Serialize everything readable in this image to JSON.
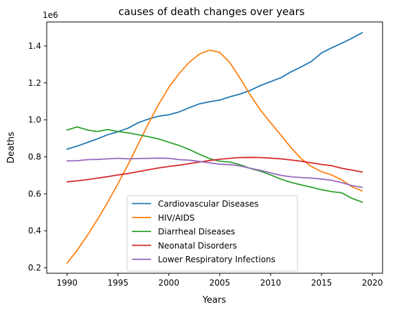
{
  "chart_data": {
    "type": "line",
    "title": "causes of death changes over years",
    "xlabel": "Years",
    "ylabel": "Deaths",
    "y_offset_label": "1e6",
    "xlim": [
      1988,
      2021
    ],
    "ylim": [
      0.17,
      1.53
    ],
    "xticks": [
      1990,
      1995,
      2000,
      2005,
      2010,
      2015,
      2020
    ],
    "yticks": [
      0.2,
      0.4,
      0.6,
      0.8,
      1.0,
      1.2,
      1.4
    ],
    "ytick_labels": [
      "0.2",
      "0.4",
      "0.6",
      "0.8",
      "1.0",
      "1.2",
      "1.4"
    ],
    "grid": false,
    "legend_position": "lower-center",
    "x": [
      1990,
      1991,
      1992,
      1993,
      1994,
      1995,
      1996,
      1997,
      1998,
      1999,
      2000,
      2001,
      2002,
      2003,
      2004,
      2005,
      2006,
      2007,
      2008,
      2009,
      2010,
      2011,
      2012,
      2013,
      2014,
      2015,
      2016,
      2017,
      2018,
      2019
    ],
    "series": [
      {
        "name": "Cardiovascular Diseases",
        "color": "#1f77b4",
        "values": [
          0.842,
          0.858,
          0.878,
          0.898,
          0.92,
          0.936,
          0.955,
          0.985,
          1.005,
          1.02,
          1.028,
          1.043,
          1.066,
          1.087,
          1.098,
          1.107,
          1.125,
          1.14,
          1.16,
          1.186,
          1.207,
          1.228,
          1.26,
          1.287,
          1.316,
          1.362,
          1.39,
          1.415,
          1.442,
          1.472
        ]
      },
      {
        "name": "HIV/AIDS",
        "color": "#ff7f0e",
        "values": [
          0.225,
          0.295,
          0.375,
          0.462,
          0.555,
          0.655,
          0.758,
          0.87,
          0.98,
          1.085,
          1.176,
          1.25,
          1.312,
          1.356,
          1.378,
          1.365,
          1.31,
          1.225,
          1.135,
          1.053,
          0.985,
          0.918,
          0.85,
          0.79,
          0.748,
          0.72,
          0.702,
          0.675,
          0.638,
          0.615
        ]
      },
      {
        "name": "Diarrheal Diseases",
        "color": "#2ca02c",
        "values": [
          0.945,
          0.962,
          0.945,
          0.937,
          0.948,
          0.937,
          0.93,
          0.92,
          0.909,
          0.897,
          0.879,
          0.862,
          0.84,
          0.814,
          0.79,
          0.776,
          0.772,
          0.757,
          0.737,
          0.722,
          0.702,
          0.68,
          0.662,
          0.648,
          0.636,
          0.622,
          0.612,
          0.605,
          0.575,
          0.555
        ]
      },
      {
        "name": "Neonatal Disorders",
        "color": "#d62728",
        "values": [
          0.665,
          0.67,
          0.677,
          0.685,
          0.693,
          0.702,
          0.71,
          0.72,
          0.73,
          0.74,
          0.748,
          0.755,
          0.763,
          0.772,
          0.78,
          0.787,
          0.792,
          0.796,
          0.797,
          0.796,
          0.793,
          0.789,
          0.783,
          0.776,
          0.768,
          0.759,
          0.752,
          0.738,
          0.728,
          0.718
        ]
      },
      {
        "name": "Lower Respiratory Infections",
        "color": "#9467bd",
        "values": [
          0.778,
          0.779,
          0.785,
          0.786,
          0.789,
          0.792,
          0.789,
          0.791,
          0.792,
          0.793,
          0.792,
          0.785,
          0.782,
          0.775,
          0.768,
          0.76,
          0.758,
          0.751,
          0.738,
          0.727,
          0.713,
          0.7,
          0.692,
          0.688,
          0.685,
          0.68,
          0.673,
          0.66,
          0.644,
          0.635
        ]
      }
    ]
  }
}
